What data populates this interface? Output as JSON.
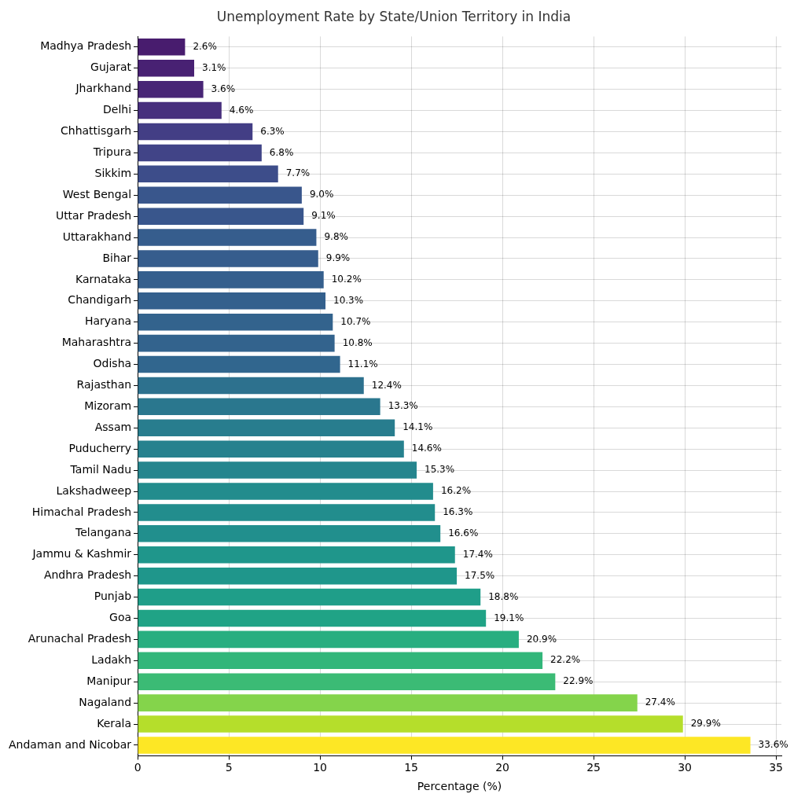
{
  "chart_data": {
    "type": "bar",
    "orientation": "horizontal",
    "title": "Unemployment Rate by State/Union Territory in India",
    "x_label": "Percentage (%)",
    "categories": [
      "Madhya Pradesh",
      "Gujarat",
      "Jharkhand",
      "Delhi",
      "Chhattisgarh",
      "Tripura",
      "Sikkim",
      "West Bengal",
      "Uttar Pradesh",
      "Uttarakhand",
      "Bihar",
      "Karnataka",
      "Chandigarh",
      "Haryana",
      "Maharashtra",
      "Odisha",
      "Rajasthan",
      "Mizoram",
      "Assam",
      "Puducherry",
      "Tamil Nadu",
      "Lakshadweep",
      "Himachal Pradesh",
      "Telangana",
      "Jammu & Kashmir",
      "Andhra Pradesh",
      "Punjab",
      "Goa",
      "Arunachal Pradesh",
      "Ladakh",
      "Manipur",
      "Nagaland",
      "Kerala",
      "Andaman and Nicobar"
    ],
    "values": [
      2.6,
      3.1,
      3.6,
      4.6,
      6.3,
      6.8,
      7.7,
      9.0,
      9.1,
      9.8,
      9.9,
      10.2,
      10.3,
      10.7,
      10.8,
      11.1,
      12.4,
      13.3,
      14.1,
      14.6,
      15.3,
      16.2,
      16.3,
      16.6,
      17.4,
      17.5,
      18.8,
      19.1,
      20.9,
      22.2,
      22.9,
      27.4,
      29.9,
      33.6
    ],
    "value_labels": [
      "2.6%",
      "3.1%",
      "3.6%",
      "4.6%",
      "6.3%",
      "6.8%",
      "7.7%",
      "9.0%",
      "9.1%",
      "9.8%",
      "9.9%",
      "10.2%",
      "10.3%",
      "10.7%",
      "10.8%",
      "11.1%",
      "12.4%",
      "13.3%",
      "14.1%",
      "14.6%",
      "15.3%",
      "16.2%",
      "16.3%",
      "16.6%",
      "17.4%",
      "17.5%",
      "18.8%",
      "19.1%",
      "20.9%",
      "22.2%",
      "22.9%",
      "27.4%",
      "29.9%",
      "33.6%"
    ],
    "colors": [
      "#481c6e",
      "#482173",
      "#482576",
      "#472f7d",
      "#433e85",
      "#414487",
      "#3d4d8a",
      "#39568c",
      "#39568c",
      "#365d8d",
      "#365d8d",
      "#355f8d",
      "#34608d",
      "#33638d",
      "#33638d",
      "#31668e",
      "#2d718e",
      "#2a778e",
      "#287d8e",
      "#26818e",
      "#25858e",
      "#228c8d",
      "#228d8d",
      "#218f8d",
      "#1f968b",
      "#1f968b",
      "#1f9e89",
      "#20a386",
      "#28ae80",
      "#32b67a",
      "#3bbb75",
      "#84d44b",
      "#b5de2b",
      "#fde725"
    ],
    "xlim": [
      0,
      35.3
    ],
    "xticks": [
      0,
      5,
      10,
      15,
      20,
      25,
      30,
      35
    ],
    "grid": true,
    "data_labels": true
  }
}
